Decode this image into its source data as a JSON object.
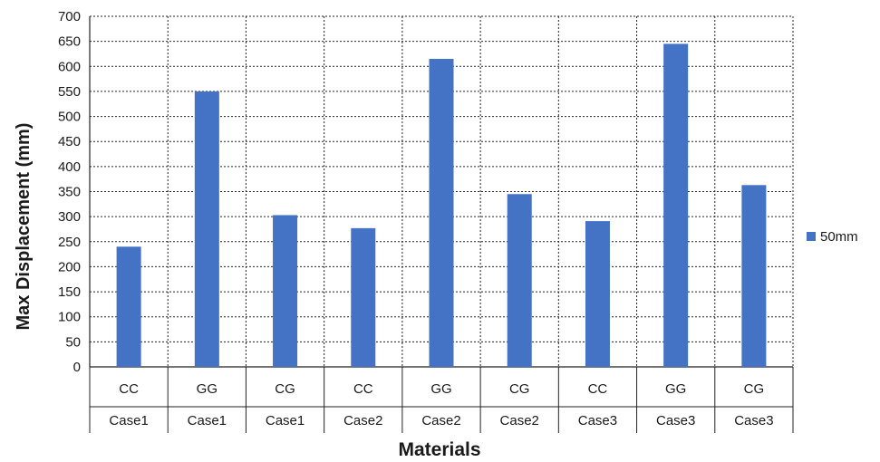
{
  "chart_data": {
    "type": "bar",
    "categories": [
      {
        "material": "CC",
        "case": "Case1"
      },
      {
        "material": "GG",
        "case": "Case1"
      },
      {
        "material": "CG",
        "case": "Case1"
      },
      {
        "material": "CC",
        "case": "Case2"
      },
      {
        "material": "GG",
        "case": "Case2"
      },
      {
        "material": "CG",
        "case": "Case2"
      },
      {
        "material": "CC",
        "case": "Case3"
      },
      {
        "material": "GG",
        "case": "Case3"
      },
      {
        "material": "CG",
        "case": "Case3"
      }
    ],
    "series": [
      {
        "name": "50mm",
        "color": "#4472c4",
        "values": [
          240,
          550,
          303,
          277,
          615,
          345,
          291,
          645,
          363
        ]
      }
    ],
    "title": "",
    "xlabel": "Materials",
    "ylabel": "Max Displacement (mm)",
    "ylim": [
      0,
      700
    ],
    "yticks": [
      0,
      50,
      100,
      150,
      200,
      250,
      300,
      350,
      400,
      450,
      500,
      550,
      600,
      650,
      700
    ],
    "grid": true,
    "legend_position": "right"
  }
}
